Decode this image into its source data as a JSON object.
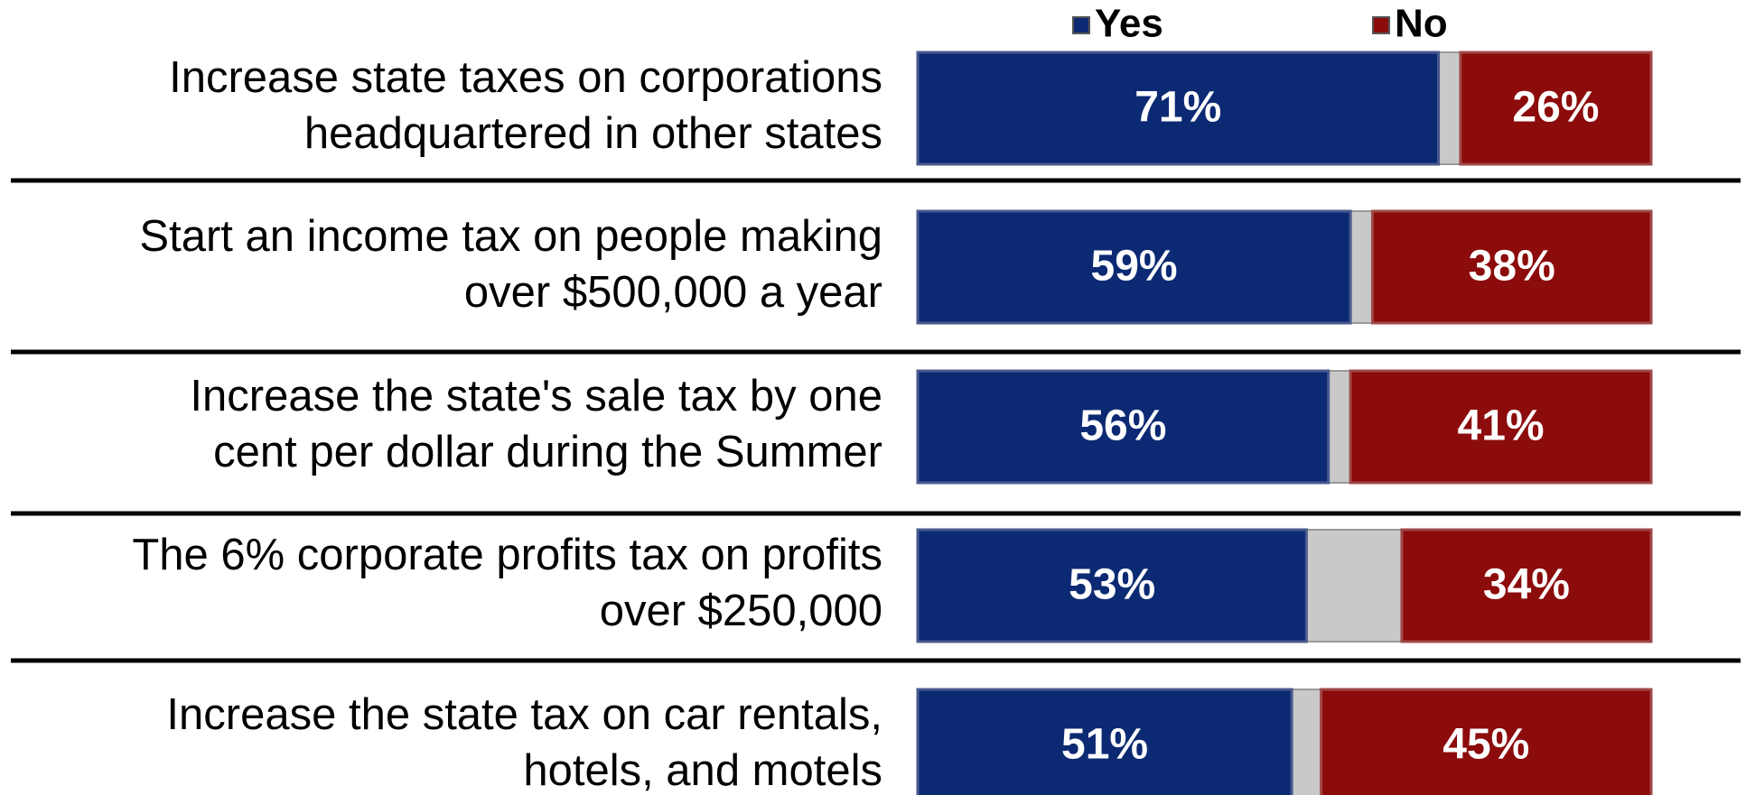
{
  "chart_data": {
    "type": "stacked-bar-horizontal",
    "categories": [
      [
        "Increase state taxes on corporations",
        "headquartered in other states"
      ],
      [
        "Start an income tax on people making",
        "over $500,000 a year"
      ],
      [
        "Increase the state's sale tax by one",
        "cent per dollar during the Summer"
      ],
      [
        "The 6% corporate profits tax on profits",
        "over $250,000"
      ],
      [
        "Increase the state tax on car rentals,",
        "hotels, and motels"
      ]
    ],
    "series": [
      {
        "name": "Yes",
        "color": "#0c2a73",
        "values": [
          71,
          59,
          56,
          53,
          51
        ],
        "value_labels": [
          "71%",
          "59%",
          "56%",
          "53%",
          "51%"
        ]
      },
      {
        "name": "No",
        "color": "#8c0b0b",
        "values": [
          26,
          38,
          41,
          34,
          45
        ],
        "value_labels": [
          "26%",
          "38%",
          "41%",
          "34%",
          "45%"
        ]
      }
    ],
    "remainder_color": "#c9c9c9",
    "xlim": [
      0,
      100
    ]
  }
}
